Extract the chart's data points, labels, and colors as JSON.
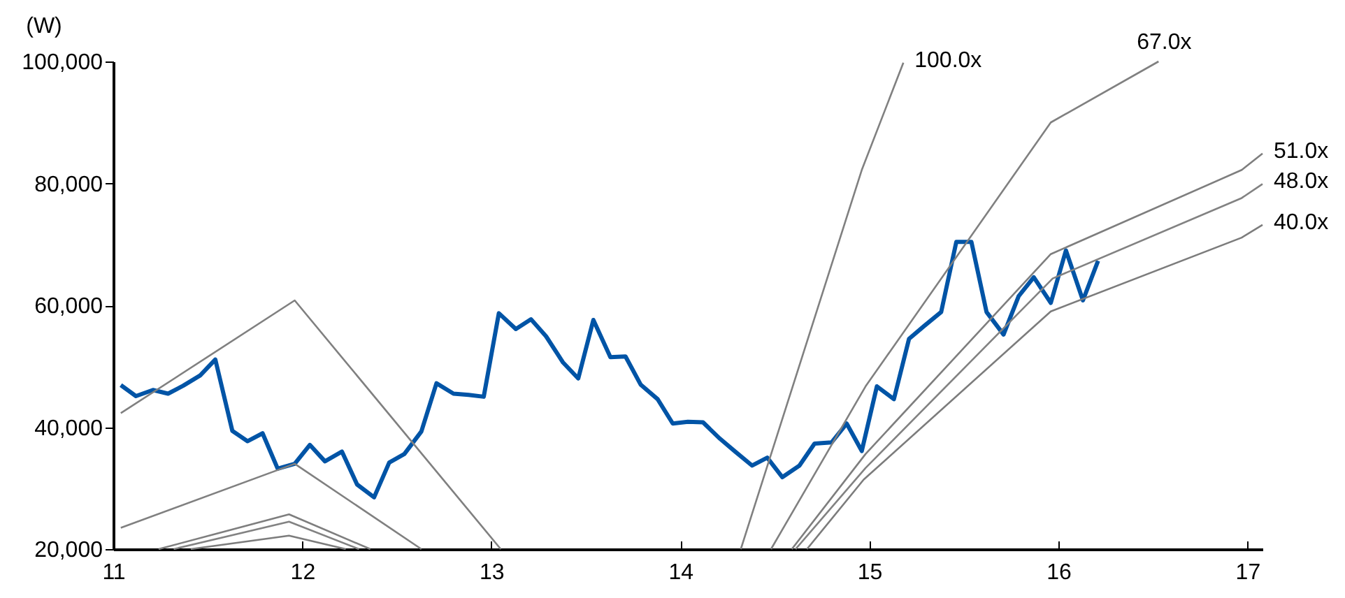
{
  "chart_data": {
    "type": "line",
    "ylabel": "(W)",
    "xlim": [
      11,
      17.08
    ],
    "xticks": [
      11,
      12,
      13,
      14,
      15,
      16,
      17
    ],
    "ylim": [
      20000,
      100000
    ],
    "yticks": [
      {
        "value": 20000,
        "label": "20,000"
      },
      {
        "value": 40000,
        "label": "40,000"
      },
      {
        "value": 60000,
        "label": "60,000"
      },
      {
        "value": 80000,
        "label": "80,000"
      },
      {
        "value": 100000,
        "label": "100,000"
      }
    ],
    "grid": false,
    "line_style": "solid",
    "marker": "none",
    "series": [
      {
        "color": "#0054a6",
        "x": [
          11.04,
          11.12,
          11.21,
          11.29,
          11.37,
          11.46,
          11.54,
          11.63,
          11.71,
          11.79,
          11.87,
          11.96,
          12.04,
          12.12,
          12.21,
          12.29,
          12.38,
          12.46,
          12.54,
          12.63,
          12.71,
          12.8,
          12.88,
          12.96,
          13.04,
          13.13,
          13.21,
          13.29,
          13.38,
          13.46,
          13.54,
          13.63,
          13.71,
          13.79,
          13.88,
          13.96,
          14.04,
          14.12,
          14.21,
          14.29,
          14.38,
          14.46,
          14.54,
          14.63,
          14.71,
          14.8,
          14.88,
          14.96,
          15.04,
          15.13,
          15.21,
          15.29,
          15.38,
          15.46,
          15.54,
          15.62,
          15.71,
          15.79,
          15.87,
          15.96,
          16.04,
          16.13,
          16.21
        ],
        "values": [
          46900,
          45100,
          46100,
          45500,
          46800,
          48500,
          51100,
          39400,
          37700,
          39000,
          33200,
          34000,
          37100,
          34400,
          36000,
          30600,
          28500,
          34200,
          35600,
          39300,
          47200,
          45500,
          45300,
          45000,
          58700,
          56100,
          57700,
          54900,
          50600,
          48000,
          57600,
          51500,
          51600,
          47000,
          44600,
          40600,
          40900,
          40800,
          38100,
          36000,
          33700,
          35000,
          31800,
          33700,
          37300,
          37500,
          40600,
          36100,
          46700,
          44600,
          54500,
          56600,
          58900,
          70400,
          70400,
          58900,
          55200,
          61500,
          64600,
          60400,
          69000,
          60800,
          67300
        ]
      },
      {
        "name": "100.0x",
        "color": "#808080",
        "x": [
          11.04,
          11.96,
          13.05,
          null,
          14.32,
          14.96,
          15.18
        ],
        "values": [
          42300,
          60800,
          20000,
          null,
          20000,
          82200,
          99800
        ]
      },
      {
        "name": "67.0x",
        "color": "#808080",
        "x": [
          11.04,
          11.96,
          12.63,
          null,
          14.48,
          14.98,
          15.96,
          16.53
        ],
        "values": [
          23500,
          34000,
          20000,
          null,
          20000,
          46700,
          90000,
          100000
        ]
      },
      {
        "name": "51.0x",
        "color": "#7e7e7e",
        "x": [
          11.24,
          11.93,
          12.36,
          null,
          14.59,
          14.98,
          15.96,
          16.97,
          17.08
        ],
        "values": [
          20000,
          25700,
          20000,
          null,
          20000,
          35600,
          68400,
          82200,
          84900
        ]
      },
      {
        "name": "48.0x",
        "color": "#828282",
        "x": [
          11.32,
          11.93,
          12.3,
          null,
          14.61,
          14.98,
          15.97,
          16.97,
          17.08
        ],
        "values": [
          20000,
          24500,
          20000,
          null,
          20000,
          33300,
          64400,
          77600,
          79900
        ]
      },
      {
        "name": "40.0x",
        "color": "#7c7c7c",
        "x": [
          11.41,
          11.93,
          12.23,
          null,
          14.67,
          14.97,
          15.96,
          16.97,
          17.08
        ],
        "values": [
          20000,
          22200,
          20000,
          null,
          20000,
          31400,
          59000,
          71100,
          73200
        ]
      }
    ]
  }
}
